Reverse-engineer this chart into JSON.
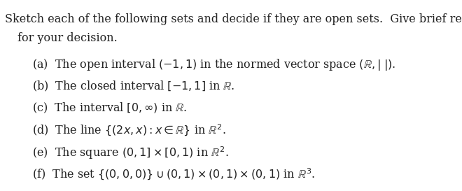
{
  "title_line1": "Sketch each of the following sets and decide if they are open sets.  Give brief reasons",
  "title_line2": "for your decision.",
  "items": [
    "(a)  The open interval $(-1, 1)$ in the normed vector space $(\\mathbb{R},|\\;|)$.",
    "(b)  The closed interval $[-1, 1]$ in $\\mathbb{R}$.",
    "(c)  The interval $[0, \\infty)$ in $\\mathbb{R}$.",
    "(d)  The line $\\{(2x, x) : x \\in \\mathbb{R}\\}$ in $\\mathbb{R}^2$.",
    "(e)  The square $(0, 1] \\times [0, 1)$ in $\\mathbb{R}^2$.",
    "(f)  The set $\\{(0,0,0)\\} \\cup (0,1) \\times (0,1) \\times (0,1)$ in $\\mathbb{R}^3$."
  ],
  "background_color": "#ffffff",
  "text_color": "#222222",
  "fontsize_title": 11.5,
  "fontsize_items": 11.5,
  "indent_title2": 0.038,
  "indent_items": 0.07,
  "fig_width": 6.6,
  "fig_height": 2.73,
  "dpi": 100
}
